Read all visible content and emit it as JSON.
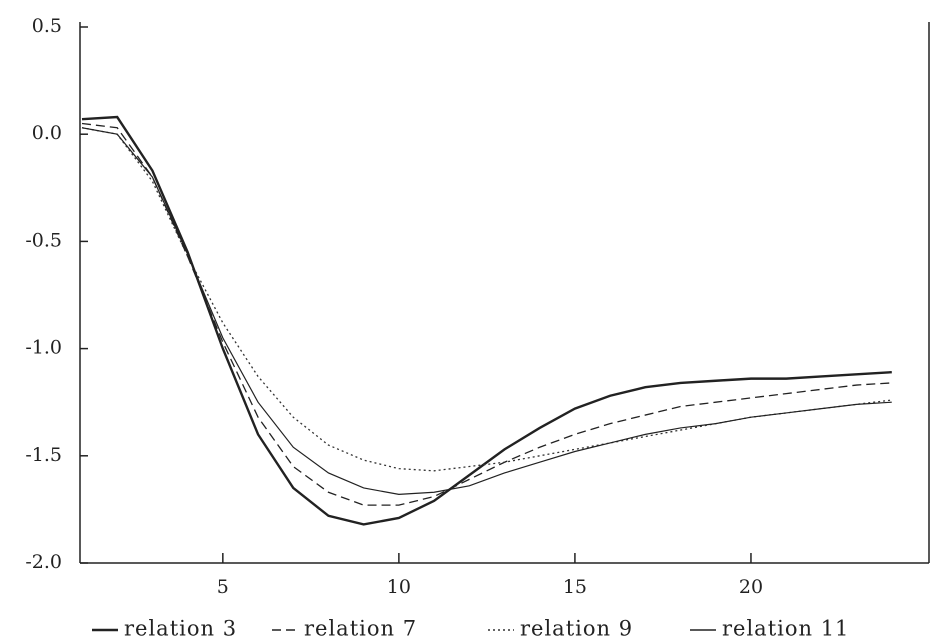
{
  "chart_data": {
    "type": "line",
    "x": [
      1,
      2,
      3,
      4,
      5,
      6,
      7,
      8,
      9,
      10,
      11,
      12,
      13,
      14,
      15,
      16,
      17,
      18,
      19,
      20,
      21,
      22,
      23,
      24
    ],
    "series": [
      {
        "name": "relation 3",
        "color": "#222222",
        "style": "solid",
        "width": 2.4,
        "values": [
          0.07,
          0.08,
          -0.17,
          -0.55,
          -1.0,
          -1.4,
          -1.65,
          -1.78,
          -1.82,
          -1.79,
          -1.71,
          -1.59,
          -1.47,
          -1.37,
          -1.28,
          -1.22,
          -1.18,
          -1.16,
          -1.15,
          -1.14,
          -1.14,
          -1.13,
          -1.12,
          -1.11
        ]
      },
      {
        "name": "relation 7",
        "color": "#222222",
        "style": "dashed",
        "width": 1.3,
        "values": [
          0.05,
          0.03,
          -0.2,
          -0.57,
          -0.97,
          -1.32,
          -1.55,
          -1.67,
          -1.73,
          -1.73,
          -1.69,
          -1.61,
          -1.53,
          -1.46,
          -1.4,
          -1.35,
          -1.31,
          -1.27,
          -1.25,
          -1.23,
          -1.21,
          -1.19,
          -1.17,
          -1.16
        ]
      },
      {
        "name": "relation 9",
        "color": "#333333",
        "style": "dotted",
        "width": 1.3,
        "values": [
          0.03,
          0.0,
          -0.22,
          -0.57,
          -0.88,
          -1.13,
          -1.32,
          -1.45,
          -1.52,
          -1.56,
          -1.57,
          -1.55,
          -1.53,
          -1.5,
          -1.47,
          -1.44,
          -1.41,
          -1.38,
          -1.35,
          -1.32,
          -1.3,
          -1.28,
          -1.26,
          -1.24
        ]
      },
      {
        "name": "relation 11",
        "color": "#222222",
        "style": "solid",
        "width": 1.2,
        "values": [
          0.03,
          0.0,
          -0.2,
          -0.56,
          -0.95,
          -1.25,
          -1.46,
          -1.58,
          -1.65,
          -1.68,
          -1.67,
          -1.64,
          -1.58,
          -1.53,
          -1.48,
          -1.44,
          -1.4,
          -1.37,
          -1.35,
          -1.32,
          -1.3,
          -1.28,
          -1.26,
          -1.25
        ]
      }
    ],
    "xlim": [
      1,
      25
    ],
    "xticks": [
      5,
      10,
      15,
      20
    ],
    "ylim": [
      -2.0,
      0.5
    ],
    "yticks": [
      0.5,
      {
        "value": 0,
        "label": "0.0"
      },
      -0.5,
      {
        "value": -1,
        "label": "-1.0"
      },
      -1.5,
      {
        "value": -2,
        "label": "-2.0"
      }
    ],
    "legend": "bottom"
  }
}
